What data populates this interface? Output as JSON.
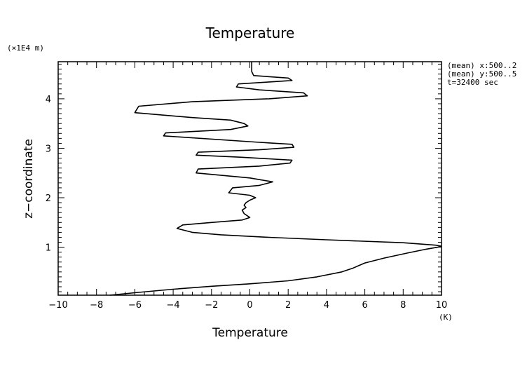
{
  "chart_data": {
    "type": "line",
    "title": "Temperature",
    "xlabel": "Temperature",
    "ylabel": "z−coordinate",
    "x_unit": "(K)",
    "y_unit": "(×1E4 m)",
    "xlim": [
      -10,
      10
    ],
    "ylim": [
      0.03,
      4.75
    ],
    "x_major_ticks": [
      -10,
      -8,
      -6,
      -4,
      -2,
      0,
      2,
      4,
      6,
      8,
      10
    ],
    "x_tick_labels": [
      "−10",
      "−8",
      "−6",
      "−4",
      "−2",
      "0",
      "2",
      "4",
      "6",
      "8",
      "10"
    ],
    "y_major_ticks": [
      1,
      2,
      3,
      4
    ],
    "y_tick_labels": [
      "1",
      "2",
      "3",
      "4"
    ],
    "grid": false,
    "notes": [
      "(mean) x:500..2",
      "(mean) y:500..5",
      "t=32400 sec"
    ],
    "series": [
      {
        "x": [
          -7.3,
          -6.0,
          -4.0,
          -2.0,
          0.0,
          2.0,
          3.5,
          4.8,
          5.4,
          6.0,
          7.0,
          8.2,
          9.2,
          9.8,
          10.0,
          9.7,
          8.0,
          4.0,
          1.0,
          -1.5,
          -3.0,
          -3.8,
          -3.5,
          -2.0,
          -0.4,
          0.0,
          -0.3,
          -0.4,
          -0.2,
          -0.3,
          -0.2,
          0.0,
          0.3,
          0.0,
          -1.1,
          -0.9,
          0.5,
          1.2,
          0.0,
          -2.8,
          -2.7,
          0.5,
          2.1,
          2.2,
          -0.5,
          -2.8,
          -2.7,
          0.5,
          2.3,
          2.2,
          0.5,
          -4.5,
          -4.4,
          -1.0,
          -0.1,
          -0.3,
          -1.0,
          -3.0,
          -6.0,
          -5.8,
          -3.0,
          1.0,
          3.0,
          2.8,
          0.5,
          -0.7,
          -0.6,
          1.0,
          2.2,
          2.0,
          0.2,
          0.1,
          0.1,
          0.1
        ],
        "y": [
          0.03,
          0.08,
          0.15,
          0.21,
          0.26,
          0.32,
          0.4,
          0.5,
          0.58,
          0.68,
          0.78,
          0.88,
          0.96,
          1.0,
          1.02,
          1.04,
          1.09,
          1.15,
          1.2,
          1.25,
          1.3,
          1.38,
          1.45,
          1.5,
          1.55,
          1.6,
          1.68,
          1.75,
          1.8,
          1.85,
          1.9,
          1.95,
          2.0,
          2.05,
          2.1,
          2.2,
          2.25,
          2.32,
          2.4,
          2.5,
          2.58,
          2.64,
          2.7,
          2.76,
          2.82,
          2.86,
          2.92,
          2.97,
          3.02,
          3.08,
          3.12,
          3.25,
          3.31,
          3.38,
          3.45,
          3.5,
          3.57,
          3.62,
          3.72,
          3.85,
          3.94,
          4.0,
          4.06,
          4.12,
          4.18,
          4.24,
          4.3,
          4.34,
          4.37,
          4.42,
          4.47,
          4.55,
          4.65,
          4.75
        ]
      }
    ]
  }
}
